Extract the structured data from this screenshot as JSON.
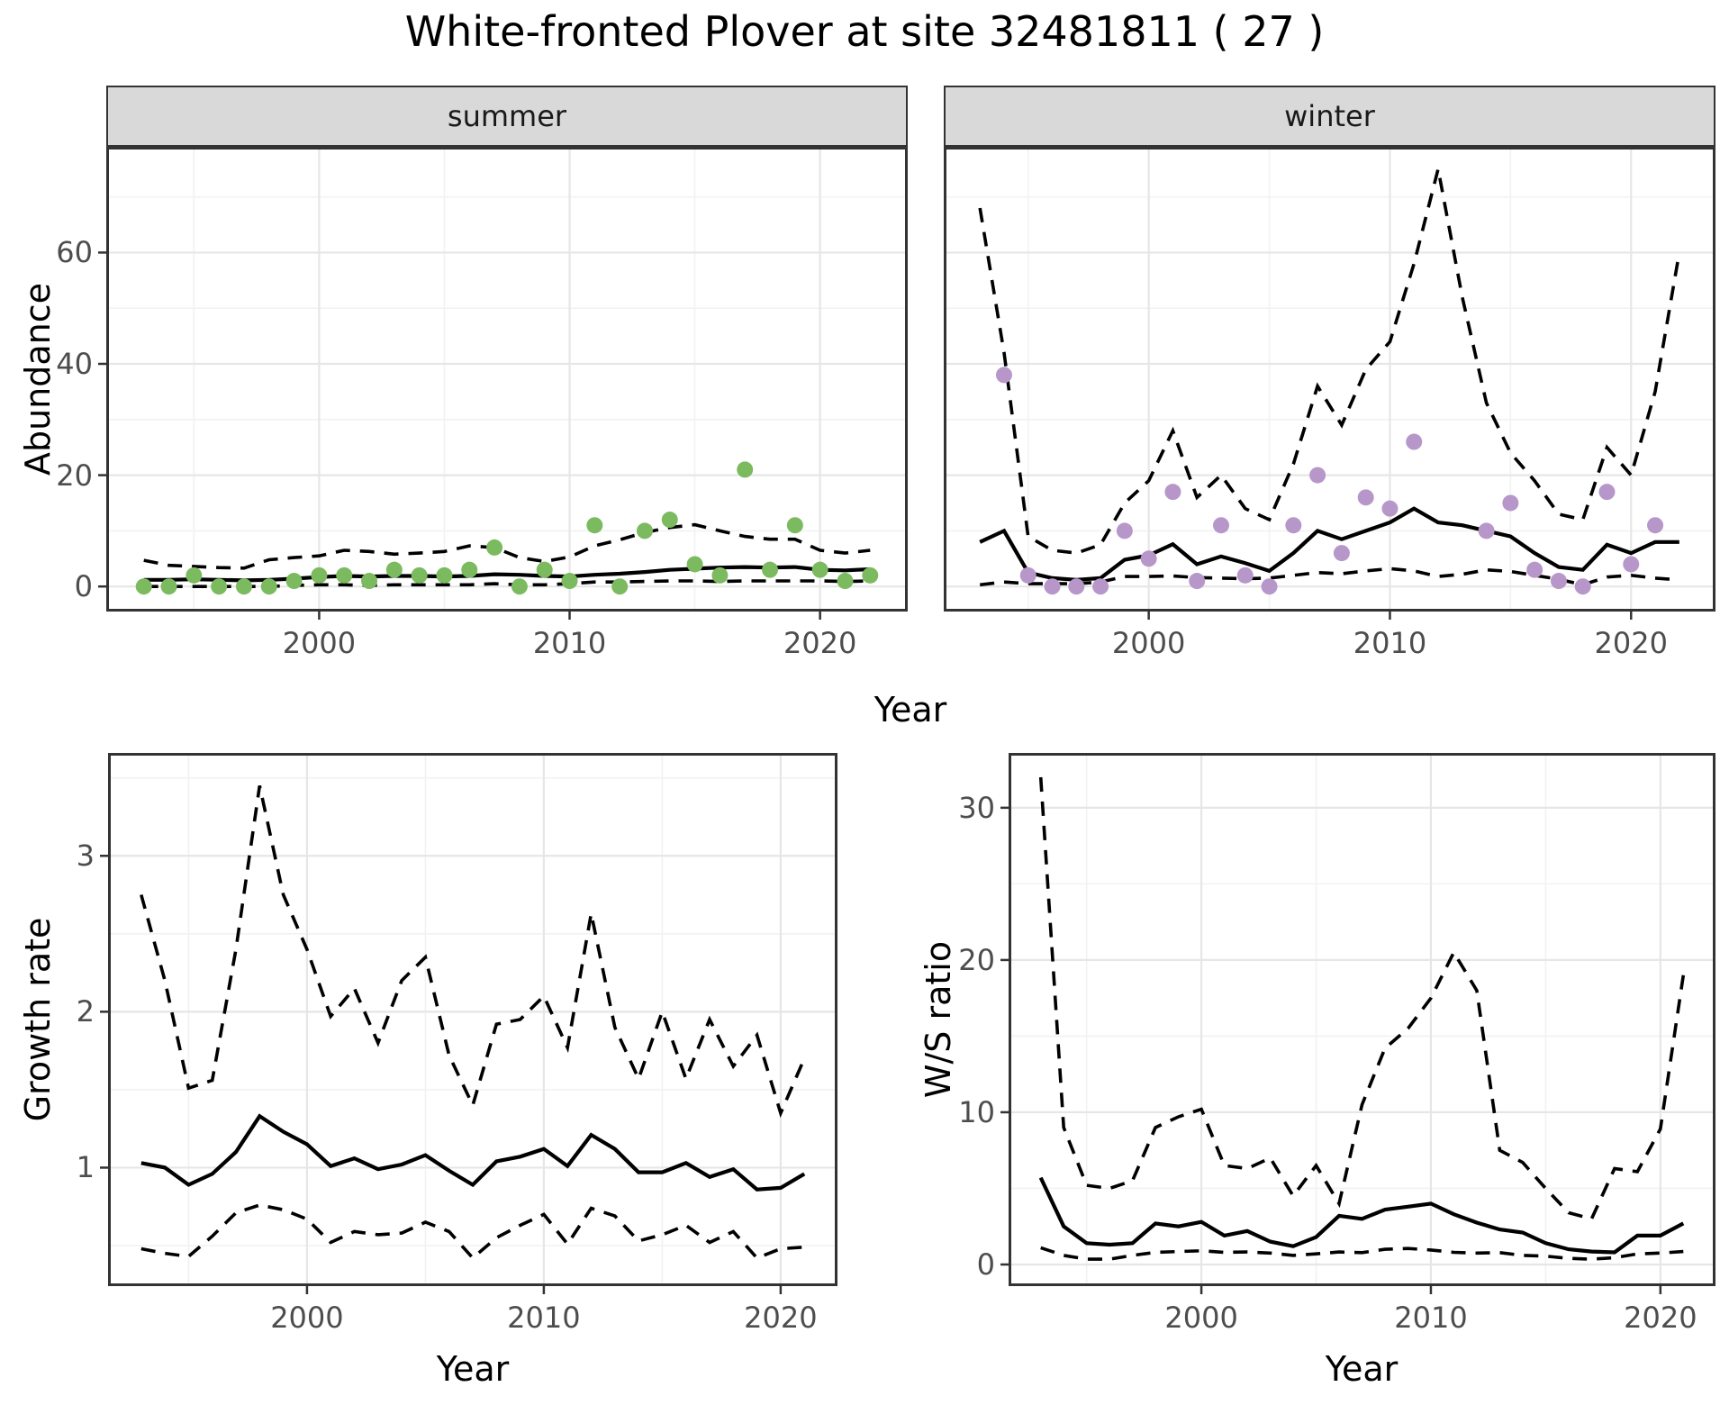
{
  "title": "White-fronted Plover at site 32481811 ( 27 )",
  "top_figure": {
    "facets": [
      "summer",
      "winter"
    ],
    "ylabel": "Abundance",
    "xlabel": "Year"
  },
  "bottom_left": {
    "ylabel": "Growth rate",
    "xlabel": "Year"
  },
  "bottom_right": {
    "ylabel": "W/S ratio",
    "xlabel": "Year"
  },
  "colors": {
    "summer_point": "#7cba60",
    "winter_point": "#b797c9",
    "line": "#000000",
    "strip_bg": "#d9d9d9",
    "panel_border": "#333333",
    "grid_major": "#e6e6e6",
    "grid_minor": "#f2f2f2",
    "tick_text": "#4d4d4d"
  },
  "chart_data": [
    {
      "id": "summer",
      "type": "line+scatter",
      "facet_label": "summer",
      "ylabel": "Abundance",
      "xlabel": "Year",
      "x": [
        1993,
        1994,
        1995,
        1996,
        1997,
        1998,
        1999,
        2000,
        2001,
        2002,
        2003,
        2004,
        2005,
        2006,
        2007,
        2008,
        2009,
        2010,
        2011,
        2012,
        2013,
        2014,
        2015,
        2016,
        2017,
        2018,
        2019,
        2020,
        2021,
        2022
      ],
      "points": [
        0,
        0,
        2,
        0,
        0,
        0,
        1,
        2,
        2,
        1,
        3,
        2,
        2,
        3,
        7,
        0,
        3,
        1,
        11,
        0,
        10,
        12,
        4,
        2,
        21,
        3,
        11,
        3,
        1,
        2
      ],
      "median": [
        1.2,
        1.2,
        1.3,
        1.2,
        1.1,
        1.2,
        1.4,
        1.7,
        1.9,
        1.8,
        1.9,
        1.9,
        1.8,
        1.9,
        2.2,
        2.1,
        1.9,
        1.8,
        2.1,
        2.3,
        2.6,
        3.0,
        3.2,
        3.4,
        3.5,
        3.4,
        3.5,
        3.0,
        2.9,
        3.1
      ],
      "upper": [
        4.7,
        3.8,
        3.6,
        3.4,
        3.3,
        4.8,
        5.2,
        5.5,
        6.5,
        6.3,
        5.8,
        6.0,
        6.3,
        7.3,
        7.0,
        5.2,
        4.5,
        5.3,
        7.3,
        8.4,
        9.7,
        10.6,
        11.1,
        10.0,
        9.0,
        8.5,
        8.5,
        6.5,
        6.0,
        6.5
      ],
      "lower": [
        0,
        0,
        0,
        0,
        0,
        0,
        0.2,
        0.3,
        0.3,
        0.2,
        0.3,
        0.3,
        0.3,
        0.3,
        0.5,
        0.3,
        0.3,
        0.5,
        0.8,
        0.8,
        0.9,
        1.0,
        1.0,
        0.9,
        1.0,
        1.0,
        1.0,
        1.0,
        0.9,
        1.0
      ],
      "point_color": "#7cba60",
      "xlim": [
        1991.5,
        2023.5
      ],
      "ylim": [
        -4.5,
        79
      ],
      "xticks": [
        2000,
        2010,
        2020
      ],
      "yticks": [
        0,
        20,
        40,
        60
      ],
      "xminor": [
        1995,
        2005,
        2015
      ],
      "yminor": [
        10,
        30,
        50,
        70
      ]
    },
    {
      "id": "winter",
      "type": "line+scatter",
      "facet_label": "winter",
      "ylabel": "Abundance",
      "xlabel": "Year",
      "x": [
        1993,
        1994,
        1995,
        1996,
        1997,
        1998,
        1999,
        2000,
        2001,
        2002,
        2003,
        2004,
        2005,
        2006,
        2007,
        2008,
        2009,
        2010,
        2011,
        2012,
        2013,
        2014,
        2015,
        2016,
        2017,
        2018,
        2019,
        2020,
        2021,
        2022
      ],
      "points": [
        null,
        38,
        2,
        0,
        0,
        0,
        10,
        5,
        17,
        1,
        11,
        2,
        0,
        11,
        20,
        6,
        16,
        14,
        26,
        null,
        null,
        10,
        15,
        3,
        1,
        0,
        17,
        4,
        11,
        null
      ],
      "median": [
        8,
        10,
        2.5,
        1.5,
        1.2,
        1.5,
        4.8,
        5.6,
        7.6,
        4,
        5.4,
        4.2,
        2.8,
        6,
        10,
        8.5,
        10,
        11.5,
        14,
        11.5,
        11,
        10,
        9,
        6,
        3.5,
        3,
        7.5,
        6,
        8,
        8
      ],
      "upper": [
        68,
        42,
        9,
        6.5,
        6,
        7.5,
        15,
        19,
        28,
        16,
        20,
        14,
        12,
        22,
        36,
        29,
        39,
        44,
        58,
        75,
        52,
        33,
        24,
        19,
        13,
        12,
        25,
        20,
        35,
        60
      ],
      "lower": [
        0.3,
        0.8,
        0.5,
        0.5,
        0.5,
        0.8,
        1.8,
        1.8,
        1.9,
        1.6,
        1.5,
        1.4,
        1.5,
        2,
        2.5,
        2.3,
        2.8,
        3.2,
        2.8,
        1.8,
        2.2,
        3,
        2.7,
        2,
        1.3,
        0.3,
        1.7,
        2,
        1.5,
        1.2
      ],
      "point_color": "#b797c9",
      "xlim": [
        1991.5,
        2023.5
      ],
      "ylim": [
        -4.5,
        79
      ],
      "xticks": [
        2000,
        2010,
        2020
      ],
      "yticks": [
        0,
        20,
        40,
        60
      ],
      "xminor": [
        1995,
        2005,
        2015
      ],
      "yminor": [
        10,
        30,
        50,
        70
      ]
    },
    {
      "id": "growth",
      "type": "line",
      "ylabel": "Growth rate",
      "xlabel": "Year",
      "x": [
        1993,
        1994,
        1995,
        1996,
        1997,
        1998,
        1999,
        2000,
        2001,
        2002,
        2003,
        2004,
        2005,
        2006,
        2007,
        2008,
        2009,
        2010,
        2011,
        2012,
        2013,
        2014,
        2015,
        2016,
        2017,
        2018,
        2019,
        2020,
        2021
      ],
      "median": [
        1.03,
        1.0,
        0.89,
        0.96,
        1.1,
        1.33,
        1.23,
        1.15,
        1.01,
        1.06,
        0.99,
        1.02,
        1.08,
        0.98,
        0.89,
        1.04,
        1.07,
        1.12,
        1.01,
        1.21,
        1.12,
        0.97,
        0.97,
        1.03,
        0.94,
        0.99,
        0.86,
        0.87,
        0.96
      ],
      "upper": [
        2.75,
        2.2,
        1.51,
        1.56,
        2.4,
        3.45,
        2.75,
        2.4,
        1.97,
        2.15,
        1.8,
        2.2,
        2.35,
        1.72,
        1.4,
        1.92,
        1.95,
        2.1,
        1.77,
        2.63,
        1.9,
        1.57,
        2.0,
        1.57,
        1.95,
        1.65,
        1.85,
        1.35,
        1.7
      ],
      "lower": [
        0.48,
        0.45,
        0.43,
        0.56,
        0.71,
        0.76,
        0.73,
        0.67,
        0.52,
        0.59,
        0.57,
        0.58,
        0.65,
        0.59,
        0.42,
        0.55,
        0.63,
        0.7,
        0.51,
        0.74,
        0.69,
        0.53,
        0.57,
        0.63,
        0.52,
        0.59,
        0.42,
        0.48,
        0.49
      ],
      "xlim": [
        1991.6,
        2022.4
      ],
      "ylim": [
        0.24,
        3.66
      ],
      "xticks": [
        2000,
        2010,
        2020
      ],
      "yticks": [
        1,
        2,
        3
      ],
      "xminor": [
        1995,
        2005,
        2015
      ],
      "yminor": [
        0.5,
        1.5,
        2.5,
        3.5
      ]
    },
    {
      "id": "ratio",
      "type": "line",
      "ylabel": "W/S ratio",
      "xlabel": "Year",
      "x": [
        1993,
        1994,
        1995,
        1996,
        1997,
        1998,
        1999,
        2000,
        2001,
        2002,
        2003,
        2004,
        2005,
        2006,
        2007,
        2008,
        2009,
        2010,
        2011,
        2012,
        2013,
        2014,
        2015,
        2016,
        2017,
        2018,
        2019,
        2020,
        2021
      ],
      "median": [
        5.7,
        2.5,
        1.4,
        1.3,
        1.4,
        2.7,
        2.5,
        2.8,
        1.9,
        2.2,
        1.5,
        1.2,
        1.8,
        3.2,
        3.0,
        3.6,
        3.8,
        4.0,
        3.3,
        2.75,
        2.3,
        2.1,
        1.4,
        1.0,
        0.85,
        0.8,
        1.9,
        1.9,
        2.7
      ],
      "upper": [
        32,
        9,
        5.2,
        5,
        5.5,
        9,
        9.7,
        10.2,
        6.5,
        6.3,
        7,
        4.5,
        6.5,
        4,
        10.5,
        14.2,
        15.5,
        17.5,
        20.5,
        18,
        7.5,
        6.7,
        5,
        3.4,
        3,
        6.3,
        6.1,
        8.9,
        19
      ],
      "lower": [
        1.1,
        0.6,
        0.35,
        0.35,
        0.6,
        0.8,
        0.85,
        0.9,
        0.8,
        0.82,
        0.75,
        0.6,
        0.7,
        0.82,
        0.78,
        1.0,
        1.05,
        0.95,
        0.8,
        0.75,
        0.78,
        0.6,
        0.55,
        0.4,
        0.35,
        0.45,
        0.7,
        0.75,
        0.85
      ],
      "xlim": [
        1991.6,
        2022.4
      ],
      "ylim": [
        -1.42,
        33.6
      ],
      "xticks": [
        2000,
        2010,
        2020
      ],
      "yticks": [
        0,
        10,
        20,
        30
      ],
      "xminor": [
        1995,
        2005,
        2015
      ],
      "yminor": [
        5,
        15,
        25
      ]
    }
  ]
}
